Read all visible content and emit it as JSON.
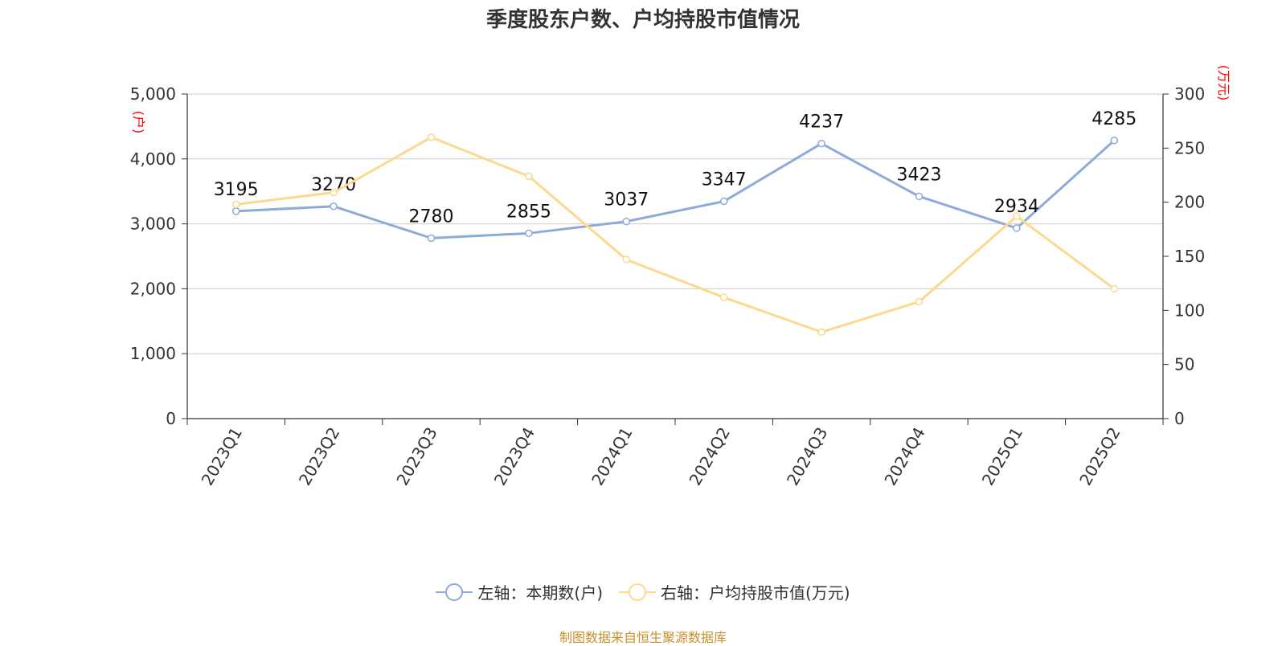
{
  "title": "季度股东户数、户均持股市值情况",
  "source_note": "制图数据来自恒生聚源数据库",
  "colors": {
    "left_series": "#8eaadb",
    "right_series": "#fdd88f",
    "axis_unit": "#ff0000",
    "source": "#c8902a"
  },
  "chart_data": {
    "type": "line",
    "categories": [
      "2023Q1",
      "2023Q2",
      "2023Q3",
      "2023Q4",
      "2024Q1",
      "2024Q2",
      "2024Q3",
      "2024Q4",
      "2025Q1",
      "2025Q2"
    ],
    "y_left": {
      "unit_label": "(户)",
      "ylim": [
        0,
        5000
      ],
      "ticks": [
        "0",
        "1,000",
        "2,000",
        "3,000",
        "4,000",
        "5,000"
      ]
    },
    "y_right": {
      "unit_label": "(万元)",
      "ylim": [
        0,
        300
      ],
      "ticks": [
        "0",
        "50",
        "100",
        "150",
        "200",
        "250",
        "300"
      ]
    },
    "series": [
      {
        "name": "左轴：本期数(户)",
        "axis": "left",
        "values": [
          3195,
          3270,
          2780,
          2855,
          3037,
          3347,
          4237,
          3423,
          2934,
          4285
        ],
        "show_labels": true
      },
      {
        "name": "右轴：户均持股市值(万元)",
        "axis": "right",
        "values": [
          198,
          209,
          260,
          224,
          147,
          112,
          80,
          108,
          187,
          120
        ],
        "show_labels": false
      }
    ],
    "grid": true,
    "legend_position": "bottom"
  }
}
